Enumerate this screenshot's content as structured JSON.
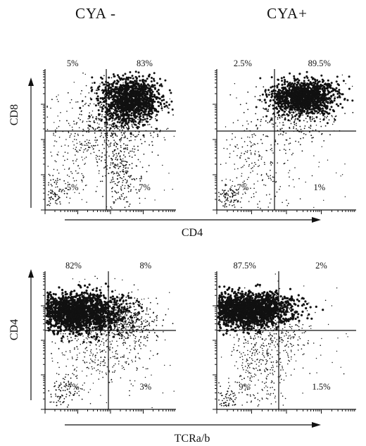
{
  "column_titles": [
    "CYA -",
    "CYA+"
  ],
  "row_labels": {
    "top": {
      "y_axis": "CD8",
      "x_axis": "CD4"
    },
    "bottom": {
      "y_axis": "CD4",
      "x_axis": "TCRa/b"
    }
  },
  "chart_data": [
    {
      "type": "scatter",
      "row": "top",
      "column": "CYA -",
      "xlabel": "CD4",
      "ylabel": "CD8",
      "quadrants": {
        "upper_left": "5%",
        "upper_right": "83%",
        "lower_left": "5%",
        "lower_right": "7%"
      }
    },
    {
      "type": "scatter",
      "row": "top",
      "column": "CYA+",
      "xlabel": "CD4",
      "ylabel": "CD8",
      "quadrants": {
        "upper_left": "2.5%",
        "upper_right": "89.5%",
        "lower_left": "7%",
        "lower_right": "1%"
      }
    },
    {
      "type": "scatter",
      "row": "bottom",
      "column": "CYA -",
      "xlabel": "TCRa/b",
      "ylabel": "CD4",
      "quadrants": {
        "upper_left": "82%",
        "upper_right": "8%",
        "lower_left": "7%",
        "lower_right": "3%"
      }
    },
    {
      "type": "scatter",
      "row": "bottom",
      "column": "CYA+",
      "xlabel": "TCRa/b",
      "ylabel": "CD4",
      "quadrants": {
        "upper_left": "87.5%",
        "upper_right": "2%",
        "lower_left": "9%",
        "lower_right": "1.5%"
      }
    }
  ]
}
